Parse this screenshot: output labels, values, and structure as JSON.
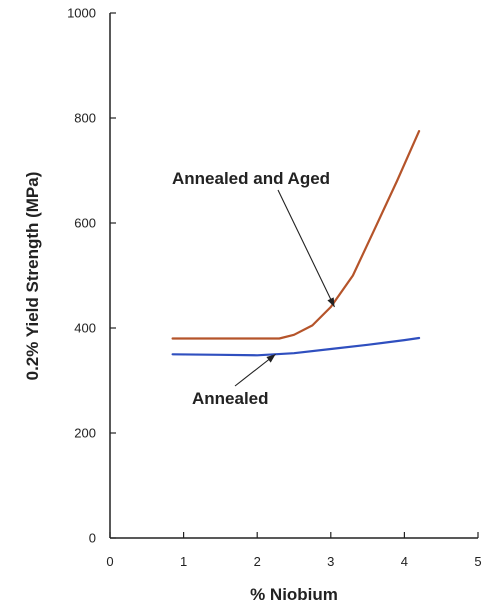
{
  "chart_data": {
    "type": "line",
    "title": "",
    "xlabel": "% Niobium",
    "ylabel": "0.2% Yield Strength (MPa)",
    "xlim": [
      0,
      5
    ],
    "ylim": [
      0,
      1000
    ],
    "xticks": [
      "0",
      "1",
      "2",
      "3",
      "4",
      "5"
    ],
    "yticks": [
      "0",
      "200",
      "400",
      "600",
      "800",
      "1000"
    ],
    "grid": false,
    "legend": "none",
    "series": [
      {
        "name": "Annealed and Aged",
        "color": "#b5542a",
        "x": [
          0.85,
          1.5,
          2.0,
          2.3,
          2.5,
          2.75,
          3.0,
          3.3,
          3.6,
          3.9,
          4.2
        ],
        "y": [
          380,
          380,
          380,
          380,
          387,
          405,
          440,
          500,
          590,
          680,
          775
        ]
      },
      {
        "name": "Annealed",
        "color": "#2f4fbf",
        "x": [
          0.85,
          1.5,
          2.0,
          2.5,
          3.0,
          3.5,
          4.0,
          4.2
        ],
        "y": [
          350,
          349,
          348,
          352,
          360,
          368,
          377,
          381
        ]
      }
    ],
    "annotations": [
      {
        "text": "Annealed and Aged",
        "target_series": "Annealed and Aged",
        "target_x": 3.05,
        "target_y": 440
      },
      {
        "text": "Annealed",
        "target_series": "Annealed",
        "target_x": 2.25,
        "target_y": 350
      }
    ]
  }
}
